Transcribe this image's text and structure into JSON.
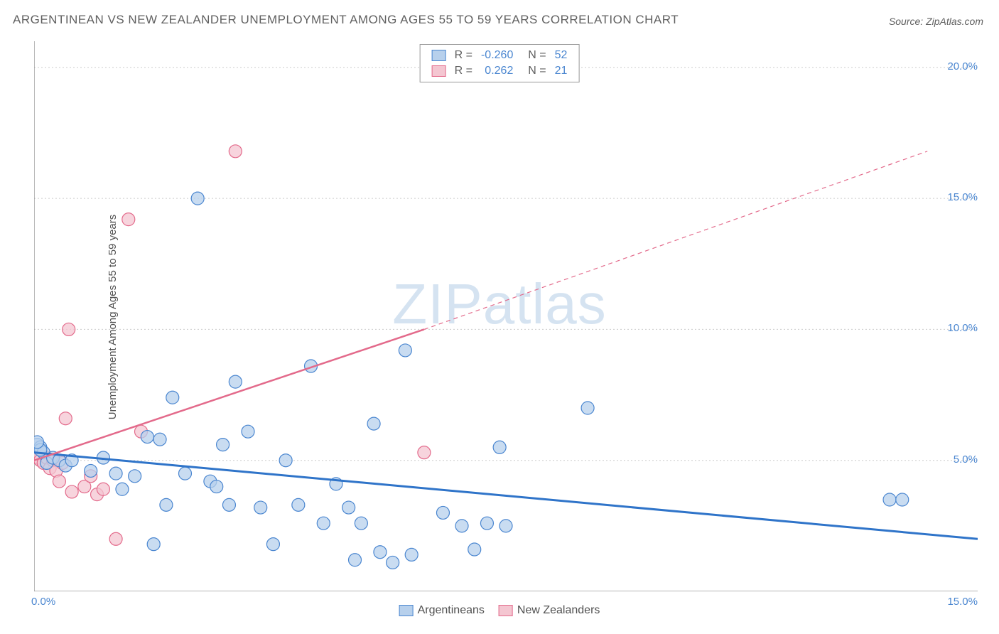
{
  "title": "ARGENTINEAN VS NEW ZEALANDER UNEMPLOYMENT AMONG AGES 55 TO 59 YEARS CORRELATION CHART",
  "title_color": "#606060",
  "source_text": "Source: ZipAtlas.com",
  "source_color": "#606060",
  "ylabel": "Unemployment Among Ages 55 to 59 years",
  "ylabel_color": "#505050",
  "watermark": {
    "zip": "ZIP",
    "atlas": "atlas",
    "color": "#d5e3f1"
  },
  "axes": {
    "xlim": [
      0,
      15
    ],
    "ylim": [
      0,
      21
    ],
    "xticks": [
      {
        "v": 0,
        "label": "0.0%"
      },
      {
        "v": 15,
        "label": "15.0%"
      }
    ],
    "yticks": [
      {
        "v": 5,
        "label": "5.0%"
      },
      {
        "v": 10,
        "label": "10.0%"
      },
      {
        "v": 15,
        "label": "15.0%"
      },
      {
        "v": 20,
        "label": "20.0%"
      }
    ],
    "axis_color": "#888888",
    "grid_color": "#cccccc",
    "tick_label_color": "#4a86d0"
  },
  "series": {
    "argentineans": {
      "label": "Argentineans",
      "color_fill": "#b7d0ec",
      "color_stroke": "#4a86d0",
      "marker_radius": 9,
      "R": "-0.260",
      "N": "52",
      "trend": {
        "x1": 0,
        "y1": 5.3,
        "x2": 15,
        "y2": 2.0,
        "color": "#2f74c9",
        "width": 3
      },
      "points": [
        [
          0.05,
          5.6
        ],
        [
          0.1,
          5.5
        ],
        [
          0.15,
          5.3
        ],
        [
          0.2,
          4.9
        ],
        [
          0.3,
          5.1
        ],
        [
          0.4,
          5.0
        ],
        [
          0.5,
          4.8
        ],
        [
          0.6,
          5.0
        ],
        [
          0.9,
          4.6
        ],
        [
          1.1,
          5.1
        ],
        [
          1.3,
          4.5
        ],
        [
          1.4,
          3.9
        ],
        [
          1.6,
          4.4
        ],
        [
          1.8,
          5.9
        ],
        [
          1.9,
          1.8
        ],
        [
          2.0,
          5.8
        ],
        [
          2.1,
          3.3
        ],
        [
          2.2,
          7.4
        ],
        [
          2.4,
          4.5
        ],
        [
          2.6,
          15.0
        ],
        [
          2.8,
          4.2
        ],
        [
          2.9,
          4.0
        ],
        [
          3.0,
          5.6
        ],
        [
          3.1,
          3.3
        ],
        [
          3.2,
          8.0
        ],
        [
          3.4,
          6.1
        ],
        [
          3.6,
          3.2
        ],
        [
          3.8,
          1.8
        ],
        [
          4.0,
          5.0
        ],
        [
          4.2,
          3.3
        ],
        [
          4.4,
          8.6
        ],
        [
          4.6,
          2.6
        ],
        [
          4.8,
          4.1
        ],
        [
          5.0,
          3.2
        ],
        [
          5.1,
          1.2
        ],
        [
          5.2,
          2.6
        ],
        [
          5.4,
          6.4
        ],
        [
          5.5,
          1.5
        ],
        [
          5.7,
          1.1
        ],
        [
          5.9,
          9.2
        ],
        [
          6.0,
          1.4
        ],
        [
          6.5,
          3.0
        ],
        [
          6.8,
          2.5
        ],
        [
          7.0,
          1.6
        ],
        [
          7.2,
          2.6
        ],
        [
          7.4,
          5.5
        ],
        [
          7.5,
          2.5
        ],
        [
          8.8,
          7.0
        ],
        [
          13.6,
          3.5
        ],
        [
          13.8,
          3.5
        ],
        [
          0.1,
          5.4
        ],
        [
          0.05,
          5.7
        ]
      ]
    },
    "newzealanders": {
      "label": "New Zealanders",
      "color_fill": "#f4c6d1",
      "color_stroke": "#e36a8b",
      "marker_radius": 9,
      "R": "0.262",
      "N": "21",
      "trend_solid": {
        "x1": 0,
        "y1": 5.0,
        "x2": 6.2,
        "y2": 10.0,
        "color": "#e36a8b",
        "width": 2.5
      },
      "trend_dashed": {
        "x1": 6.2,
        "y1": 10.0,
        "x2": 14.2,
        "y2": 16.8,
        "color": "#e36a8b",
        "width": 1.2,
        "dash": "6 5"
      },
      "points": [
        [
          0.05,
          5.1
        ],
        [
          0.1,
          5.0
        ],
        [
          0.15,
          4.9
        ],
        [
          0.2,
          5.1
        ],
        [
          0.25,
          4.7
        ],
        [
          0.3,
          5.0
        ],
        [
          0.35,
          4.6
        ],
        [
          0.4,
          4.2
        ],
        [
          0.45,
          4.9
        ],
        [
          0.5,
          6.6
        ],
        [
          0.55,
          10.0
        ],
        [
          0.6,
          3.8
        ],
        [
          0.8,
          4.0
        ],
        [
          0.9,
          4.4
        ],
        [
          1.0,
          3.7
        ],
        [
          1.1,
          3.9
        ],
        [
          1.3,
          2.0
        ],
        [
          1.5,
          14.2
        ],
        [
          1.7,
          6.1
        ],
        [
          3.2,
          16.8
        ],
        [
          6.2,
          5.3
        ]
      ]
    }
  },
  "legend_bottom": [
    {
      "label": "Argentineans",
      "fill": "#b7d0ec",
      "stroke": "#4a86d0"
    },
    {
      "label": "New Zealanders",
      "fill": "#f4c6d1",
      "stroke": "#e36a8b"
    }
  ],
  "legend_top": {
    "rows": [
      {
        "fill": "#b7d0ec",
        "stroke": "#4a86d0",
        "R": "-0.260",
        "N": "52"
      },
      {
        "fill": "#f4c6d1",
        "stroke": "#e36a8b",
        "R": "0.262",
        "N": "21"
      }
    ],
    "label_color": "#606060",
    "value_color": "#4a86d0"
  }
}
